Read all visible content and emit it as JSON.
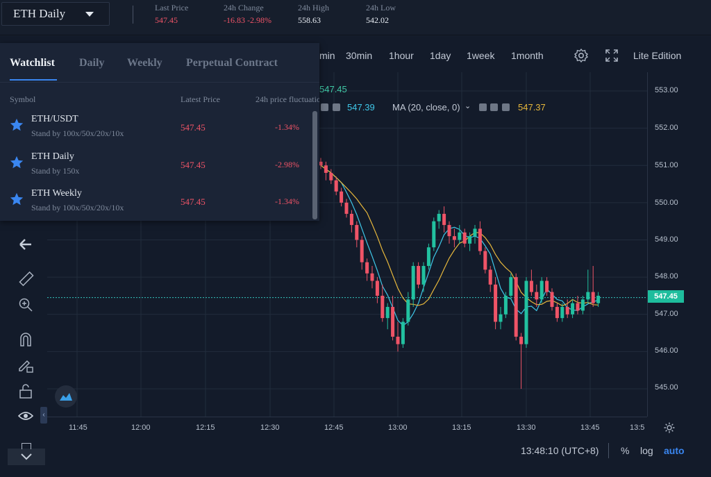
{
  "header": {
    "symbol": "ETH Daily",
    "stats": [
      {
        "label": "Last Price",
        "value": "547.45",
        "color": "#ef5467"
      },
      {
        "label": "24h Change",
        "value": "-16.83 -2.98%",
        "color": "#ef5467"
      },
      {
        "label": "24h High",
        "value": "558.63",
        "color": "#e6ebf2"
      },
      {
        "label": "24h Low",
        "value": "542.02",
        "color": "#e6ebf2"
      }
    ]
  },
  "toolbar": {
    "timeframes": [
      "min",
      "30min",
      "1hour",
      "1day",
      "1week",
      "1month"
    ],
    "settings_icon": "gear-icon",
    "fullscreen_icon": "expand-icon",
    "lite_edition": "Lite Edition"
  },
  "watchlist": {
    "tabs": [
      "Watchlist",
      "Daily",
      "Weekly",
      "Perpetual Contract"
    ],
    "active_tab": "Watchlist",
    "columns": {
      "symbol": "Symbol",
      "price": "Latest Price",
      "change": "24h price fluctuatio"
    },
    "rows": [
      {
        "name": "ETH/USDT",
        "sub": "Stand by 100x/50x/20x/10x",
        "price": "547.45",
        "change": "-1.34%"
      },
      {
        "name": "ETH Daily",
        "sub": "Stand by 150x",
        "price": "547.45",
        "change": "-2.98%"
      },
      {
        "name": "ETH Weekly",
        "sub": "Stand by 100x/50x/20x/10x",
        "price": "547.45",
        "change": "-1.34%"
      }
    ]
  },
  "legend": {
    "ma_top_value": "547.45",
    "ma1_value": "547.39",
    "ma2_label": "MA (20, close, 0)",
    "ma2_value": "547.37",
    "ma1_color": "#3fc7e8",
    "ma2_color": "#e6b73c"
  },
  "left_tools": [
    "arrow-left-icon",
    "ruler-icon",
    "zoom-in-icon",
    "magnet-icon",
    "pencil-lock-icon",
    "lock-icon",
    "eye-icon"
  ],
  "chart": {
    "y_ticks": [
      "553.00",
      "552.00",
      "551.00",
      "550.00",
      "549.00",
      "548.00",
      "547.00",
      "546.00",
      "545.00"
    ],
    "x_ticks": [
      "11:45",
      "12:00",
      "12:15",
      "12:30",
      "12:45",
      "13:00",
      "13:15",
      "13:30",
      "13:45",
      "13:5"
    ],
    "last_price": "547.45",
    "up_color": "#22c1a0",
    "down_color": "#ef5467"
  },
  "chart_data": {
    "type": "candlestick",
    "y_range": [
      544.6,
      553.2
    ],
    "last_price": 547.45,
    "candles": [
      [
        551.1,
        551.2,
        550.9,
        551.0
      ],
      [
        551.0,
        551.1,
        550.6,
        550.8
      ],
      [
        550.8,
        550.9,
        550.5,
        550.6
      ],
      [
        550.6,
        550.7,
        550.2,
        550.3
      ],
      [
        550.3,
        550.4,
        549.9,
        550.0
      ],
      [
        550.0,
        550.1,
        549.6,
        549.7
      ],
      [
        549.7,
        549.8,
        549.2,
        549.4
      ],
      [
        549.4,
        549.5,
        548.8,
        549.0
      ],
      [
        549.0,
        549.1,
        548.2,
        548.4
      ],
      [
        548.4,
        548.5,
        547.9,
        548.1
      ],
      [
        548.1,
        548.3,
        547.7,
        547.9
      ],
      [
        547.9,
        548.0,
        547.3,
        547.5
      ],
      [
        547.5,
        547.8,
        546.8,
        546.9
      ],
      [
        546.9,
        547.3,
        546.6,
        547.2
      ],
      [
        547.2,
        547.5,
        546.3,
        546.4
      ],
      [
        546.4,
        546.8,
        546.0,
        546.2
      ],
      [
        546.2,
        546.9,
        546.1,
        546.8
      ],
      [
        546.8,
        547.6,
        546.7,
        547.4
      ],
      [
        547.4,
        548.4,
        547.2,
        548.3
      ],
      [
        548.3,
        548.4,
        547.7,
        547.8
      ],
      [
        547.8,
        548.4,
        547.6,
        548.3
      ],
      [
        548.3,
        548.9,
        548.2,
        548.8
      ],
      [
        548.8,
        549.6,
        548.7,
        549.5
      ],
      [
        549.5,
        549.8,
        549.3,
        549.7
      ],
      [
        549.7,
        549.9,
        549.2,
        549.4
      ],
      [
        549.4,
        549.5,
        548.9,
        549.1
      ],
      [
        549.1,
        549.3,
        548.8,
        549.0
      ],
      [
        549.0,
        549.4,
        548.9,
        549.2
      ],
      [
        549.2,
        549.3,
        548.8,
        548.9
      ],
      [
        548.9,
        549.2,
        548.7,
        549.1
      ],
      [
        549.1,
        549.4,
        548.9,
        549.3
      ],
      [
        549.3,
        549.5,
        548.6,
        548.7
      ],
      [
        548.7,
        548.8,
        548.1,
        548.2
      ],
      [
        548.2,
        548.3,
        547.6,
        547.8
      ],
      [
        547.8,
        548.0,
        546.6,
        546.8
      ],
      [
        546.8,
        547.2,
        546.6,
        547.0
      ],
      [
        547.0,
        547.6,
        546.9,
        547.5
      ],
      [
        547.5,
        548.1,
        547.4,
        548.0
      ],
      [
        548.0,
        548.1,
        546.3,
        546.4
      ],
      [
        546.4,
        546.5,
        545.0,
        546.2
      ],
      [
        546.2,
        548.0,
        546.1,
        547.9
      ],
      [
        547.9,
        548.2,
        547.5,
        547.6
      ],
      [
        547.6,
        547.8,
        547.2,
        547.4
      ],
      [
        547.4,
        548.0,
        547.3,
        547.9
      ],
      [
        547.9,
        548.0,
        547.5,
        547.6
      ],
      [
        547.6,
        547.7,
        547.1,
        547.2
      ],
      [
        547.2,
        547.3,
        546.8,
        546.9
      ],
      [
        546.9,
        547.3,
        546.8,
        547.2
      ],
      [
        547.2,
        547.4,
        546.9,
        547.0
      ],
      [
        547.0,
        547.4,
        546.9,
        547.3
      ],
      [
        547.3,
        547.5,
        547.0,
        547.1
      ],
      [
        547.1,
        547.5,
        547.0,
        547.4
      ],
      [
        547.4,
        548.2,
        547.3,
        547.6
      ],
      [
        547.6,
        548.3,
        547.2,
        547.3
      ],
      [
        547.3,
        547.6,
        547.2,
        547.5
      ]
    ]
  },
  "bottom": {
    "time": "13:48:10 (UTC+8)",
    "percent": "%",
    "log": "log",
    "auto": "auto"
  }
}
